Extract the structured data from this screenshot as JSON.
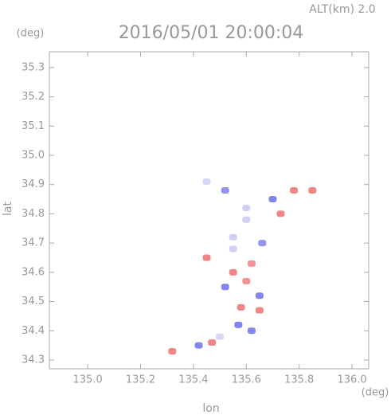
{
  "chart_data": {
    "type": "scatter",
    "title": "2016/05/01 20:00:04",
    "annotation": "ALT(km)  2.0",
    "y_unit": "(deg)",
    "x_unit": "(deg)",
    "xlabel": "lon",
    "ylabel": "lat",
    "xlim": [
      134.855,
      136.063
    ],
    "ylim": [
      34.27,
      35.354
    ],
    "xticks": [
      {
        "value": 135,
        "label": "135.0"
      },
      135.2,
      135.4,
      135.6,
      135.8,
      {
        "value": 136,
        "label": "136.0"
      }
    ],
    "yticks": [
      34.3,
      34.4,
      34.5,
      34.6,
      34.7,
      34.8,
      34.9,
      {
        "value": 35,
        "label": "35.0"
      },
      35.1,
      35.2,
      35.3
    ],
    "x": [
      135.45,
      135.52,
      135.6,
      135.7,
      135.85,
      135.55,
      135.45,
      135.55,
      135.6,
      135.52,
      135.65,
      135.58,
      135.65,
      135.57,
      135.5,
      135.47,
      135.42,
      135.62,
      135.66,
      135.32,
      135.73,
      135.78,
      135.6,
      135.55,
      135.62
    ],
    "y": [
      34.91,
      34.88,
      34.82,
      34.85,
      34.88,
      34.68,
      34.65,
      34.6,
      34.57,
      34.55,
      34.52,
      34.48,
      34.47,
      34.42,
      34.38,
      34.36,
      34.35,
      34.4,
      34.7,
      34.33,
      34.8,
      34.88,
      34.78,
      34.72,
      34.63
    ],
    "colors": [
      "#d0d0f4",
      "#8080ee",
      "#c8c8f0",
      "#7070ee",
      "#f07070",
      "#c8c8f0",
      "#f07070",
      "#f07070",
      "#f08080",
      "#7070ee",
      "#7070ee",
      "#f07070",
      "#f07070",
      "#7070ee",
      "#d0d0f4",
      "#f07070",
      "#7070ee",
      "#7070ee",
      "#8080ee",
      "#f07070",
      "#f07070",
      "#f07070",
      "#c8c8f0",
      "#c8c8f0",
      "#f08080"
    ]
  }
}
